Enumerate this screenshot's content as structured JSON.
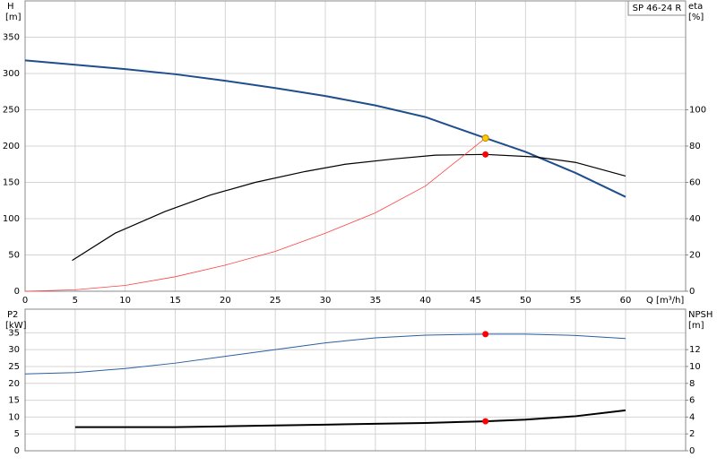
{
  "chart_data": [
    {
      "type": "line",
      "title": "SP 46-24 R",
      "xlabel": "Q [m³/h]",
      "ylabel": "H",
      "yunit": "[m]",
      "y2label": "eta",
      "y2unit": "[%]",
      "xlim": [
        0,
        66
      ],
      "xticks": [
        0,
        5,
        10,
        15,
        20,
        25,
        30,
        35,
        40,
        45,
        50,
        55,
        60
      ],
      "xtick_labels": true,
      "ylim": [
        0,
        400
      ],
      "yticks": [
        0,
        50,
        100,
        150,
        200,
        250,
        300,
        350
      ],
      "y2lim": [
        0,
        160
      ],
      "y2ticks": [
        0,
        20,
        40,
        60,
        80,
        100
      ],
      "grid": true,
      "series": [
        {
          "color": "#1f4e8c",
          "width": 2,
          "axis": "y",
          "x": [
            0,
            5,
            10,
            15,
            20,
            25,
            30,
            35,
            40,
            46,
            50,
            55,
            60
          ],
          "values": [
            318,
            312,
            306,
            299,
            290,
            280,
            269,
            256,
            240,
            211,
            192,
            163,
            130
          ]
        },
        {
          "color": "#000000",
          "width": 1.2,
          "axis": "y2",
          "x": [
            4.7,
            9,
            14,
            18.5,
            23,
            28,
            32,
            37,
            41,
            46,
            51,
            55,
            60
          ],
          "values": [
            17,
            32,
            44,
            53,
            60,
            66,
            70,
            73,
            75,
            75.4,
            74,
            71,
            63.5
          ]
        },
        {
          "color": "#ff4040",
          "width": 0.8,
          "axis": "y",
          "x": [
            0,
            5,
            10,
            15,
            20,
            25,
            30,
            35,
            40,
            46
          ],
          "values": [
            0,
            2,
            8,
            20,
            36,
            55,
            80,
            108,
            145,
            211
          ]
        },
        {
          "color": "#ffcc00",
          "marker": "dot",
          "axis": "y",
          "x": [
            46
          ],
          "values": [
            211
          ]
        },
        {
          "color": "#ff0000",
          "marker": "dot",
          "axis": "y2",
          "x": [
            46
          ],
          "values": [
            75.4
          ]
        }
      ]
    },
    {
      "type": "line",
      "ylabel": "P2",
      "yunit": "[kW]",
      "y2label": "NPSH",
      "y2unit": "[m]",
      "xlim": [
        0,
        66
      ],
      "xticks": [
        0,
        5,
        10,
        15,
        20,
        25,
        30,
        35,
        40,
        45,
        50,
        55,
        60
      ],
      "xtick_labels": false,
      "ylim": [
        0,
        42
      ],
      "yticks": [
        0,
        5,
        10,
        15,
        20,
        25,
        30,
        35
      ],
      "y2lim": [
        0,
        16.8
      ],
      "y2ticks": [
        0,
        2,
        4,
        6,
        8,
        10,
        12
      ],
      "grid": true,
      "series": [
        {
          "color": "#2a5ea0",
          "width": 1,
          "axis": "y",
          "x": [
            0,
            5,
            10,
            15,
            20,
            25,
            30,
            35,
            40,
            46,
            50,
            55,
            60
          ],
          "values": [
            22.8,
            23.2,
            24.4,
            26,
            28,
            30,
            32,
            33.5,
            34.3,
            34.6,
            34.6,
            34.2,
            33.3
          ]
        },
        {
          "color": "#000000",
          "width": 2,
          "axis": "y2",
          "x": [
            5,
            10,
            15,
            20,
            25,
            30,
            35,
            40,
            46,
            50,
            55,
            60
          ],
          "values": [
            2.8,
            2.8,
            2.8,
            2.9,
            3.0,
            3.1,
            3.2,
            3.3,
            3.5,
            3.7,
            4.1,
            4.8
          ]
        },
        {
          "color": "#ff0000",
          "marker": "dot",
          "axis": "y",
          "x": [
            46
          ],
          "values": [
            34.6
          ]
        },
        {
          "color": "#ff0000",
          "marker": "dot",
          "axis": "y2",
          "x": [
            46
          ],
          "values": [
            3.5
          ]
        }
      ]
    }
  ]
}
